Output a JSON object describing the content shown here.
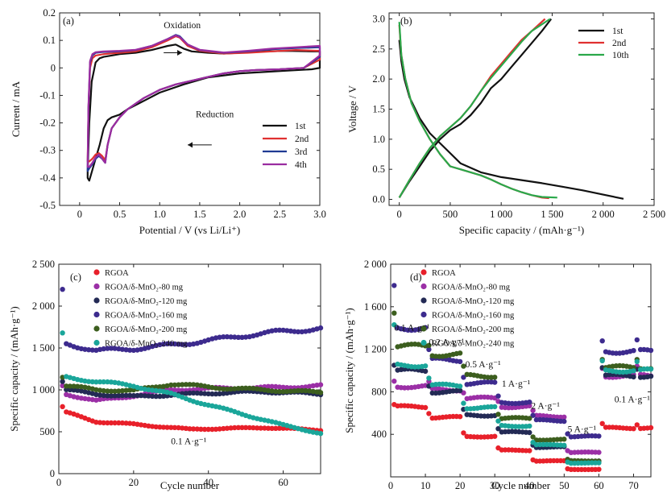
{
  "chart_data": [
    {
      "type": "line",
      "panel_label": "(a)",
      "xlabel": "Potential / V (vs Li/Li⁺)",
      "ylabel": "Current / mA",
      "xlim": [
        -0.25,
        3.0
      ],
      "ylim": [
        -0.5,
        0.2
      ],
      "xticks": [
        0.0,
        0.5,
        1.0,
        1.5,
        2.0,
        2.5,
        3.0
      ],
      "xtick_labels": [
        "0",
        "0.5",
        "1.0",
        "1.5",
        "2.0",
        "2.5",
        "3.0"
      ],
      "yticks": [
        -0.5,
        -0.4,
        -0.3,
        -0.2,
        -0.1,
        0.0,
        0.1,
        0.2
      ],
      "ytick_labels": [
        "-0.5",
        "-0.4",
        "-0.3",
        "-0.2",
        "-0.1",
        "0",
        "0.1",
        "0.2"
      ],
      "annotations": [
        {
          "text": "Oxidation",
          "x": 1.05,
          "y": 0.145
        },
        {
          "text": "Reduction",
          "x": 1.45,
          "y": -0.18
        }
      ],
      "arrows": [
        {
          "from": [
            1.05,
            0.055
          ],
          "to": [
            1.28,
            0.055
          ]
        },
        {
          "from": [
            1.65,
            -0.28
          ],
          "to": [
            1.35,
            -0.28
          ]
        }
      ],
      "legend_position": "bottom-right",
      "series": [
        {
          "name": "1st",
          "color": "#111111",
          "closed": true,
          "x": [
            0.1,
            0.12,
            0.15,
            0.2,
            0.25,
            0.3,
            0.4,
            0.5,
            0.7,
            0.9,
            1.1,
            1.2,
            1.3,
            1.4,
            1.6,
            1.8,
            2.0,
            2.3,
            2.6,
            2.9,
            3.0,
            3.0,
            2.9,
            2.6,
            2.3,
            2.0,
            1.6,
            1.3,
            1.0,
            0.8,
            0.6,
            0.5,
            0.4,
            0.35,
            0.3,
            0.25,
            0.2,
            0.15,
            0.12,
            0.1
          ],
          "y": [
            -0.38,
            -0.2,
            -0.05,
            0.02,
            0.035,
            0.04,
            0.045,
            0.05,
            0.055,
            0.065,
            0.08,
            0.085,
            0.07,
            0.06,
            0.055,
            0.052,
            0.055,
            0.06,
            0.062,
            0.06,
            0.06,
            0.0,
            -0.005,
            -0.01,
            -0.015,
            -0.02,
            -0.035,
            -0.06,
            -0.09,
            -0.12,
            -0.15,
            -0.17,
            -0.18,
            -0.19,
            -0.22,
            -0.28,
            -0.33,
            -0.38,
            -0.41,
            -0.4
          ]
        },
        {
          "name": "2nd",
          "color": "#e03030",
          "closed": true,
          "x": [
            0.1,
            0.11,
            0.13,
            0.16,
            0.2,
            0.3,
            0.5,
            0.7,
            0.9,
            1.1,
            1.2,
            1.25,
            1.35,
            1.5,
            1.8,
            2.1,
            2.4,
            2.7,
            3.0,
            3.0,
            2.8,
            2.5,
            2.2,
            2.0,
            1.8,
            1.5,
            1.2,
            1.0,
            0.8,
            0.6,
            0.5,
            0.4,
            0.35,
            0.32,
            0.28,
            0.24,
            0.2,
            0.16,
            0.12,
            0.1
          ],
          "y": [
            -0.34,
            -0.15,
            0.0,
            0.035,
            0.045,
            0.05,
            0.055,
            0.06,
            0.075,
            0.1,
            0.115,
            0.11,
            0.08,
            0.062,
            0.052,
            0.055,
            0.06,
            0.065,
            0.062,
            0.03,
            0.0,
            -0.005,
            -0.008,
            -0.012,
            -0.02,
            -0.04,
            -0.06,
            -0.08,
            -0.11,
            -0.15,
            -0.18,
            -0.22,
            -0.28,
            -0.335,
            -0.32,
            -0.31,
            -0.315,
            -0.33,
            -0.34,
            -0.34
          ]
        },
        {
          "name": "3rd",
          "color": "#1f3a93",
          "closed": true,
          "x": [
            0.1,
            0.11,
            0.13,
            0.16,
            0.2,
            0.3,
            0.5,
            0.7,
            0.9,
            1.1,
            1.2,
            1.25,
            1.35,
            1.5,
            1.8,
            2.1,
            2.4,
            2.7,
            3.0,
            3.0,
            2.8,
            2.5,
            2.2,
            2.0,
            1.8,
            1.5,
            1.2,
            1.0,
            0.8,
            0.6,
            0.5,
            0.4,
            0.35,
            0.32,
            0.28,
            0.24,
            0.2,
            0.16,
            0.12,
            0.1
          ],
          "y": [
            -0.37,
            -0.15,
            0.02,
            0.045,
            0.055,
            0.058,
            0.06,
            0.065,
            0.08,
            0.105,
            0.12,
            0.115,
            0.085,
            0.065,
            0.055,
            0.06,
            0.068,
            0.072,
            0.075,
            0.04,
            0.0,
            -0.005,
            -0.008,
            -0.012,
            -0.02,
            -0.04,
            -0.06,
            -0.08,
            -0.11,
            -0.15,
            -0.18,
            -0.22,
            -0.28,
            -0.345,
            -0.33,
            -0.32,
            -0.33,
            -0.35,
            -0.365,
            -0.375
          ]
        },
        {
          "name": "4th",
          "color": "#9a2ca0",
          "closed": true,
          "x": [
            0.1,
            0.11,
            0.13,
            0.16,
            0.2,
            0.3,
            0.5,
            0.7,
            0.9,
            1.1,
            1.2,
            1.25,
            1.35,
            1.5,
            1.8,
            2.1,
            2.4,
            2.7,
            3.0,
            3.0,
            2.8,
            2.5,
            2.2,
            2.0,
            1.8,
            1.5,
            1.2,
            1.0,
            0.8,
            0.6,
            0.5,
            0.4,
            0.35,
            0.32,
            0.28,
            0.24,
            0.2,
            0.16,
            0.12,
            0.1
          ],
          "y": [
            -0.36,
            -0.14,
            0.025,
            0.05,
            0.057,
            0.06,
            0.062,
            0.066,
            0.08,
            0.105,
            0.118,
            0.112,
            0.085,
            0.066,
            0.056,
            0.062,
            0.07,
            0.075,
            0.08,
            0.045,
            0.0,
            -0.005,
            -0.008,
            -0.012,
            -0.02,
            -0.04,
            -0.06,
            -0.08,
            -0.11,
            -0.15,
            -0.18,
            -0.22,
            -0.28,
            -0.345,
            -0.33,
            -0.315,
            -0.325,
            -0.345,
            -0.36,
            -0.36
          ]
        }
      ]
    },
    {
      "type": "line",
      "panel_label": "(b)",
      "xlabel": "Specific capacity / (mAh·g⁻¹)",
      "ylabel": "Voltage / V",
      "xlim": [
        -100,
        2500
      ],
      "ylim": [
        -0.1,
        3.1
      ],
      "xticks": [
        0,
        500,
        1000,
        1500,
        2000,
        2500
      ],
      "xtick_labels": [
        "0",
        "500",
        "1 000",
        "1 500",
        "2 000",
        "2 500"
      ],
      "yticks": [
        0.0,
        0.5,
        1.0,
        1.5,
        2.0,
        2.5,
        3.0
      ],
      "ytick_labels": [
        "0.0",
        "0.5",
        "1.0",
        "1.5",
        "2.0",
        "2.5",
        "3.0"
      ],
      "legend_position": "top-right",
      "series": [
        {
          "name": "1st",
          "color": "#111111",
          "x": [
            0,
            20,
            50,
            100,
            200,
            300,
            450,
            600,
            800,
            1000,
            1200,
            1400,
            1600,
            1800,
            2000,
            2200,
            null,
            0,
            100,
            200,
            300,
            400,
            500,
            600,
            700,
            800,
            900,
            1000,
            1100,
            1200,
            1300,
            1400,
            1490
          ],
          "y": [
            2.65,
            2.3,
            2.0,
            1.7,
            1.35,
            1.1,
            0.85,
            0.6,
            0.45,
            0.37,
            0.32,
            0.27,
            0.21,
            0.15,
            0.08,
            0.01,
            null,
            0.03,
            0.3,
            0.55,
            0.8,
            1.0,
            1.15,
            1.25,
            1.4,
            1.6,
            1.85,
            2.0,
            2.2,
            2.4,
            2.6,
            2.8,
            3.0
          ]
        },
        {
          "name": "2nd",
          "color": "#e03030",
          "x": [
            0,
            20,
            60,
            120,
            200,
            300,
            400,
            500,
            600,
            700,
            800,
            900,
            1000,
            1100,
            1200,
            1300,
            1400,
            1470,
            null,
            0,
            100,
            200,
            300,
            400,
            500,
            600,
            700,
            800,
            900,
            1000,
            1100,
            1200,
            1300,
            1430
          ],
          "y": [
            2.9,
            2.4,
            2.0,
            1.6,
            1.3,
            1.0,
            0.75,
            0.55,
            0.5,
            0.45,
            0.4,
            0.33,
            0.25,
            0.18,
            0.12,
            0.07,
            0.03,
            0.02,
            null,
            0.03,
            0.32,
            0.6,
            0.85,
            1.05,
            1.2,
            1.35,
            1.55,
            1.8,
            2.05,
            2.25,
            2.45,
            2.65,
            2.8,
            3.0
          ]
        },
        {
          "name": "10th",
          "color": "#2aa84a",
          "x": [
            0,
            20,
            60,
            120,
            200,
            300,
            400,
            500,
            600,
            700,
            800,
            900,
            1000,
            1100,
            1200,
            1300,
            1400,
            1550,
            null,
            0,
            100,
            200,
            300,
            400,
            500,
            600,
            700,
            800,
            900,
            1000,
            1100,
            1200,
            1300,
            1480
          ],
          "y": [
            2.95,
            2.4,
            2.0,
            1.6,
            1.3,
            1.0,
            0.75,
            0.55,
            0.5,
            0.45,
            0.4,
            0.33,
            0.25,
            0.18,
            0.12,
            0.07,
            0.04,
            0.03,
            null,
            0.03,
            0.32,
            0.6,
            0.85,
            1.05,
            1.2,
            1.35,
            1.55,
            1.8,
            2.02,
            2.22,
            2.42,
            2.62,
            2.8,
            3.0
          ]
        }
      ]
    },
    {
      "type": "scatter",
      "panel_label": "(c)",
      "xlabel": "Cycle number",
      "ylabel": "Specific capacity / (mAh·g⁻¹)",
      "xlim": [
        0,
        70
      ],
      "ylim": [
        0,
        2500
      ],
      "xticks": [
        0,
        20,
        40,
        60
      ],
      "xtick_labels": [
        "0",
        "20",
        "40",
        "60"
      ],
      "yticks": [
        0,
        500,
        1000,
        1500,
        2000,
        2500
      ],
      "ytick_labels": [
        "0",
        "500",
        "1 000",
        "1 500",
        "2 000",
        "2 500"
      ],
      "annotations": [
        {
          "text": "0.1 A·g⁻¹",
          "x": 30,
          "y": 350
        }
      ],
      "legend_position": "top",
      "series": [
        {
          "name": "RGOA",
          "color": "#e8202a",
          "first": 800,
          "curve": [
            [
              2,
              730
            ],
            [
              10,
              620
            ],
            [
              20,
              590
            ],
            [
              35,
              530
            ],
            [
              55,
              550
            ],
            [
              70,
              520
            ]
          ]
        },
        {
          "name": "RGOA/δ-MnO₂-80 mg",
          "color": "#9b2fa6",
          "first": 1050,
          "curve": [
            [
              2,
              950
            ],
            [
              10,
              870
            ],
            [
              20,
              930
            ],
            [
              30,
              1000
            ],
            [
              45,
              1020
            ],
            [
              60,
              1030
            ],
            [
              70,
              1050
            ]
          ]
        },
        {
          "name": "RGOA/δ-MnO₂-120 mg",
          "color": "#232a55",
          "first": 1100,
          "curve": [
            [
              2,
              1000
            ],
            [
              10,
              950
            ],
            [
              20,
              920
            ],
            [
              40,
              960
            ],
            [
              55,
              980
            ],
            [
              70,
              950
            ]
          ]
        },
        {
          "name": "RGOA/δ-MnO₂-160 mg",
          "color": "#3d2b8e",
          "first": 2200,
          "curve": [
            [
              2,
              1550
            ],
            [
              10,
              1470
            ],
            [
              20,
              1490
            ],
            [
              35,
              1560
            ],
            [
              50,
              1650
            ],
            [
              60,
              1700
            ],
            [
              70,
              1730
            ]
          ]
        },
        {
          "name": "RGOA/δ-MnO₂-200 mg",
          "color": "#3c5e1e",
          "first": 1150,
          "curve": [
            [
              2,
              1050
            ],
            [
              10,
              1000
            ],
            [
              20,
              990
            ],
            [
              30,
              1070
            ],
            [
              45,
              1020
            ],
            [
              60,
              990
            ],
            [
              70,
              970
            ]
          ]
        },
        {
          "name": "RGOA/δ-MnO₂-240 mg",
          "color": "#1aa69a",
          "first": 1680,
          "curve": [
            [
              2,
              1150
            ],
            [
              10,
              1100
            ],
            [
              20,
              1050
            ],
            [
              30,
              950
            ],
            [
              40,
              820
            ],
            [
              50,
              700
            ],
            [
              60,
              580
            ],
            [
              70,
              480
            ]
          ]
        }
      ]
    },
    {
      "type": "scatter",
      "panel_label": "(d)",
      "xlabel": "Cycle number",
      "ylabel": "Specific capacity / (mAh·g⁻¹)",
      "xlim": [
        0,
        75
      ],
      "ylim": [
        0,
        2000
      ],
      "xticks": [
        0,
        10,
        20,
        30,
        40,
        50,
        60,
        70
      ],
      "xtick_labels": [
        "0",
        "10",
        "20",
        "30",
        "40",
        "50",
        "60",
        "70"
      ],
      "yticks": [
        400,
        800,
        1200,
        1600,
        2000
      ],
      "ytick_labels": [
        "400",
        "800",
        "1 200",
        "1 600",
        "2 000"
      ],
      "annotations": [
        {
          "text": "0.1 A·g⁻¹",
          "x": 1.0,
          "y": 1375
        },
        {
          "text": "0.2 A·g⁻¹",
          "x": 11.0,
          "y": 1240
        },
        {
          "text": "0.5 A·g⁻¹",
          "x": 21.5,
          "y": 1030
        },
        {
          "text": "1 A·g⁻¹",
          "x": 32.0,
          "y": 850
        },
        {
          "text": "2 A·g⁻¹",
          "x": 40.5,
          "y": 640
        },
        {
          "text": "5 A·g⁻¹",
          "x": 51.0,
          "y": 420
        },
        {
          "text": "0.1 A·g⁻¹",
          "x": 64.5,
          "y": 700
        }
      ],
      "legend_position": "top",
      "series": [
        {
          "name": "RGOA",
          "color": "#e8202a",
          "first": 680,
          "levels": [
            660,
            560,
            380,
            250,
            150,
            70,
            460
          ]
        },
        {
          "name": "RGOA/δ-MnO₂-80 mg",
          "color": "#9b2fa6",
          "first": 900,
          "levels": [
            850,
            820,
            740,
            660,
            570,
            230,
            950
          ]
        },
        {
          "name": "RGOA/δ-MnO₂-120 mg",
          "color": "#232a55",
          "first": 1050,
          "levels": [
            1000,
            800,
            580,
            420,
            280,
            150,
            950
          ]
        },
        {
          "name": "RGOA/δ-MnO₂-160 mg",
          "color": "#3d2b8e",
          "first": 1800,
          "levels": [
            1400,
            1100,
            880,
            700,
            530,
            380,
            1180
          ]
        },
        {
          "name": "RGOA/δ-MnO₂-200 mg",
          "color": "#3c5e1e",
          "first": 1540,
          "levels": [
            1230,
            1150,
            950,
            550,
            350,
            150,
            1030
          ]
        },
        {
          "name": "RGOA/δ-MnO₂-240 mg",
          "color": "#1aa69a",
          "first": 1430,
          "levels": [
            1050,
            860,
            650,
            480,
            300,
            130,
            1000
          ]
        }
      ]
    }
  ]
}
